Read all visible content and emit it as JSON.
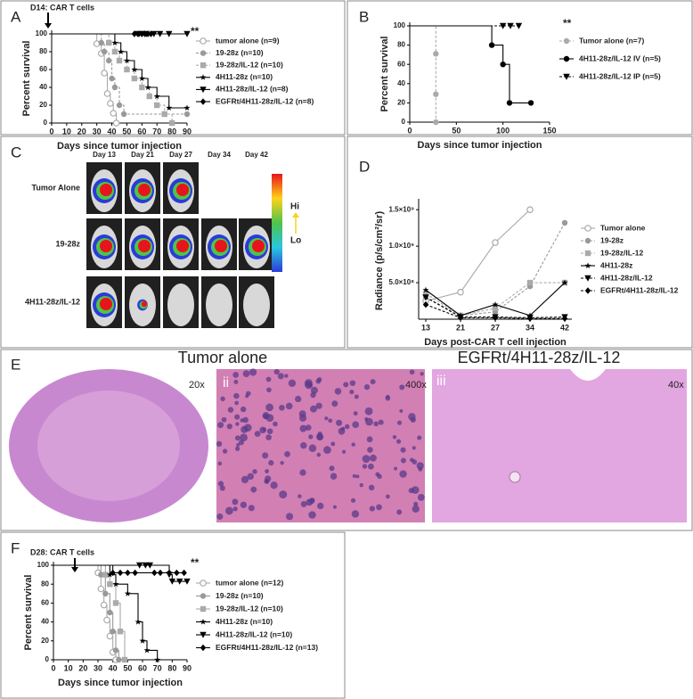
{
  "chart_data": [
    {
      "type": "survival",
      "panel": "A",
      "annotations": [
        "D14: CAR T cells",
        "**"
      ],
      "x_label": "Days since tumor injection",
      "y_label": "Percent survival",
      "xlim": [
        0,
        90
      ],
      "xticks": [
        0,
        10,
        20,
        30,
        40,
        50,
        60,
        70,
        80,
        90
      ],
      "ylim": [
        0,
        100
      ],
      "yticks": [
        0,
        20,
        40,
        60,
        80,
        100
      ],
      "series": [
        {
          "name": "tumor alone (n=9)",
          "color": "#aaaaaa",
          "marker": "circle-open",
          "dash": false,
          "x": [
            0,
            30,
            33,
            35,
            37,
            39,
            41,
            43
          ],
          "values": [
            100,
            89,
            78,
            56,
            33,
            22,
            11,
            0
          ]
        },
        {
          "name": "19-28z (n=10)",
          "color": "#999999",
          "marker": "circle",
          "dash": true,
          "x": [
            0,
            33,
            35,
            38,
            40,
            42,
            45,
            48,
            90
          ],
          "values": [
            100,
            90,
            80,
            70,
            50,
            40,
            20,
            10,
            10
          ]
        },
        {
          "name": "19-28z/IL-12 (n=10)",
          "color": "#aaaaaa",
          "marker": "square",
          "dash": true,
          "x": [
            0,
            38,
            42,
            45,
            50,
            55,
            60,
            65,
            70,
            75,
            80
          ],
          "values": [
            100,
            90,
            80,
            70,
            60,
            50,
            40,
            30,
            20,
            10,
            0
          ]
        },
        {
          "name": "4H11-28z (n=10)",
          "color": "#000000",
          "marker": "star",
          "dash": false,
          "x": [
            0,
            42,
            46,
            50,
            55,
            60,
            64,
            70,
            78,
            90
          ],
          "values": [
            100,
            90,
            80,
            70,
            60,
            50,
            40,
            30,
            17,
            17
          ]
        },
        {
          "name": "4H11-28z/IL-12 (n=8)",
          "color": "#000000",
          "marker": "triangle-down",
          "dash": false,
          "x": [
            0,
            57,
            60,
            63,
            68,
            72,
            78,
            90
          ],
          "values": [
            100,
            100,
            100,
            100,
            100,
            100,
            100,
            100
          ]
        },
        {
          "name": "EGFRt/4H11-28z/IL-12 (n=8)",
          "color": "#000000",
          "marker": "diamond",
          "dash": false,
          "x": [
            0,
            55,
            58,
            60,
            62,
            64,
            66
          ],
          "values": [
            100,
            100,
            100,
            100,
            100,
            100,
            100
          ]
        }
      ]
    },
    {
      "type": "survival",
      "panel": "B",
      "annotations": [
        "**"
      ],
      "x_label": "Days since tumor injection",
      "y_label": "Percent survival",
      "xlim": [
        0,
        150
      ],
      "xticks": [
        0,
        50,
        100,
        150
      ],
      "ylim": [
        0,
        100
      ],
      "yticks": [
        0,
        20,
        40,
        60,
        80,
        100
      ],
      "series": [
        {
          "name": "Tumor alone (n=7)",
          "color": "#aaaaaa",
          "marker": "circle",
          "dash": true,
          "x": [
            0,
            28,
            28,
            28
          ],
          "values": [
            100,
            71,
            29,
            0
          ]
        },
        {
          "name": "4H11-28z/IL-12 IV (n=5)",
          "color": "#000000",
          "marker": "circle",
          "dash": false,
          "x": [
            0,
            88,
            100,
            107,
            130
          ],
          "values": [
            100,
            80,
            60,
            20,
            20
          ]
        },
        {
          "name": "4H11-28z/IL-12 IP (n=5)",
          "color": "#000000",
          "marker": "triangle-down",
          "dash": true,
          "x": [
            0,
            100,
            108,
            117
          ],
          "values": [
            100,
            100,
            100,
            100
          ]
        }
      ]
    },
    {
      "type": "line",
      "panel": "D",
      "x_label": "Days post-CAR T cell injection",
      "y_label": "Radiance (p/s/cm²/sr)",
      "categories": [
        "13",
        "21",
        "27",
        "34",
        "42"
      ],
      "ylim": [
        0,
        1600000000
      ],
      "yticks": [
        {
          "value": 500000000,
          "label": "5.0×10⁸"
        },
        {
          "value": 1000000000,
          "label": "1.0×10⁹"
        },
        {
          "value": 1500000000,
          "label": "1.5×10⁹"
        }
      ],
      "series": [
        {
          "name": "Tumor alone",
          "color": "#aaaaaa",
          "marker": "circle-open",
          "dash": false,
          "values": [
            250000000,
            370000000,
            1050000000,
            1500000000,
            null
          ]
        },
        {
          "name": "19-28z",
          "color": "#999999",
          "marker": "circle",
          "dash": true,
          "values": [
            300000000,
            50000000,
            100000000,
            450000000,
            1320000000
          ]
        },
        {
          "name": "19-28z/IL-12",
          "color": "#aaaaaa",
          "marker": "square",
          "dash": true,
          "values": [
            350000000,
            50000000,
            150000000,
            500000000,
            500000000
          ]
        },
        {
          "name": "4H11-28z",
          "color": "#000000",
          "marker": "star",
          "dash": false,
          "values": [
            400000000,
            50000000,
            200000000,
            50000000,
            500000000
          ]
        },
        {
          "name": "4H11-28z/IL-12",
          "color": "#000000",
          "marker": "triangle-down",
          "dash": true,
          "values": [
            300000000,
            30000000,
            30000000,
            20000000,
            30000000
          ]
        },
        {
          "name": "EGFRt/4H11-28z/IL-12",
          "color": "#000000",
          "marker": "diamond",
          "dash": true,
          "values": [
            200000000,
            20000000,
            20000000,
            10000000,
            10000000
          ]
        }
      ]
    },
    {
      "type": "survival",
      "panel": "F",
      "annotations": [
        "D28: CAR T cells",
        "**"
      ],
      "x_label": "Days since tumor injection",
      "y_label": "Percent survival",
      "xlim": [
        0,
        90
      ],
      "xticks": [
        0,
        10,
        20,
        30,
        40,
        50,
        60,
        70,
        80,
        90
      ],
      "ylim": [
        0,
        100
      ],
      "yticks": [
        0,
        20,
        40,
        60,
        80,
        100
      ],
      "series": [
        {
          "name": "tumor alone (n=12)",
          "color": "#aaaaaa",
          "marker": "circle-open",
          "dash": false,
          "x": [
            0,
            30,
            32,
            34,
            36,
            38,
            40,
            42
          ],
          "values": [
            100,
            92,
            75,
            58,
            42,
            25,
            8,
            0
          ]
        },
        {
          "name": "19-28z (n=10)",
          "color": "#999999",
          "marker": "circle",
          "dash": false,
          "x": [
            0,
            32,
            35,
            38,
            40,
            42,
            44
          ],
          "values": [
            100,
            90,
            70,
            50,
            30,
            10,
            0
          ]
        },
        {
          "name": "19-28z/IL-12 (n=10)",
          "color": "#aaaaaa",
          "marker": "square",
          "dash": false,
          "x": [
            0,
            35,
            38,
            42,
            45,
            48
          ],
          "values": [
            100,
            90,
            80,
            60,
            30,
            0
          ]
        },
        {
          "name": "4H11-28z (n=10)",
          "color": "#000000",
          "marker": "star",
          "dash": false,
          "x": [
            0,
            38,
            42,
            50,
            57,
            60,
            63,
            70
          ],
          "values": [
            100,
            90,
            80,
            70,
            40,
            20,
            10,
            0
          ]
        },
        {
          "name": "4H11-28z/IL-12 (n=10)",
          "color": "#000000",
          "marker": "triangle-down",
          "dash": false,
          "x": [
            0,
            58,
            62,
            65,
            78,
            80,
            85,
            90
          ],
          "values": [
            100,
            100,
            100,
            100,
            90,
            83,
            83,
            83
          ]
        },
        {
          "name": "EGFRt/4H11-28z/IL-12 (n=13)",
          "color": "#000000",
          "marker": "diamond",
          "dash": false,
          "x": [
            0,
            40,
            45,
            50,
            55,
            68,
            72,
            78,
            83,
            88
          ],
          "values": [
            100,
            92,
            92,
            92,
            92,
            92,
            92,
            92,
            92,
            92
          ]
        }
      ]
    }
  ],
  "panel_c": {
    "panel": "C",
    "days": [
      "Day 13",
      "Day 21",
      "Day 27",
      "Day 34",
      "Day 42"
    ],
    "rows": [
      "Tumor Alone",
      "19-28z",
      "4H11-28z/IL-12"
    ],
    "scale": [
      "Hi",
      "Lo"
    ]
  },
  "panel_e": {
    "panel": "E",
    "groups": [
      "Tumor alone",
      "EGFRt/4H11-28z/IL-12"
    ],
    "images": [
      {
        "label": "i",
        "magnification": "20x"
      },
      {
        "label": "ii",
        "magnification": "400x"
      },
      {
        "label": "iii",
        "magnification": "40x"
      }
    ]
  }
}
